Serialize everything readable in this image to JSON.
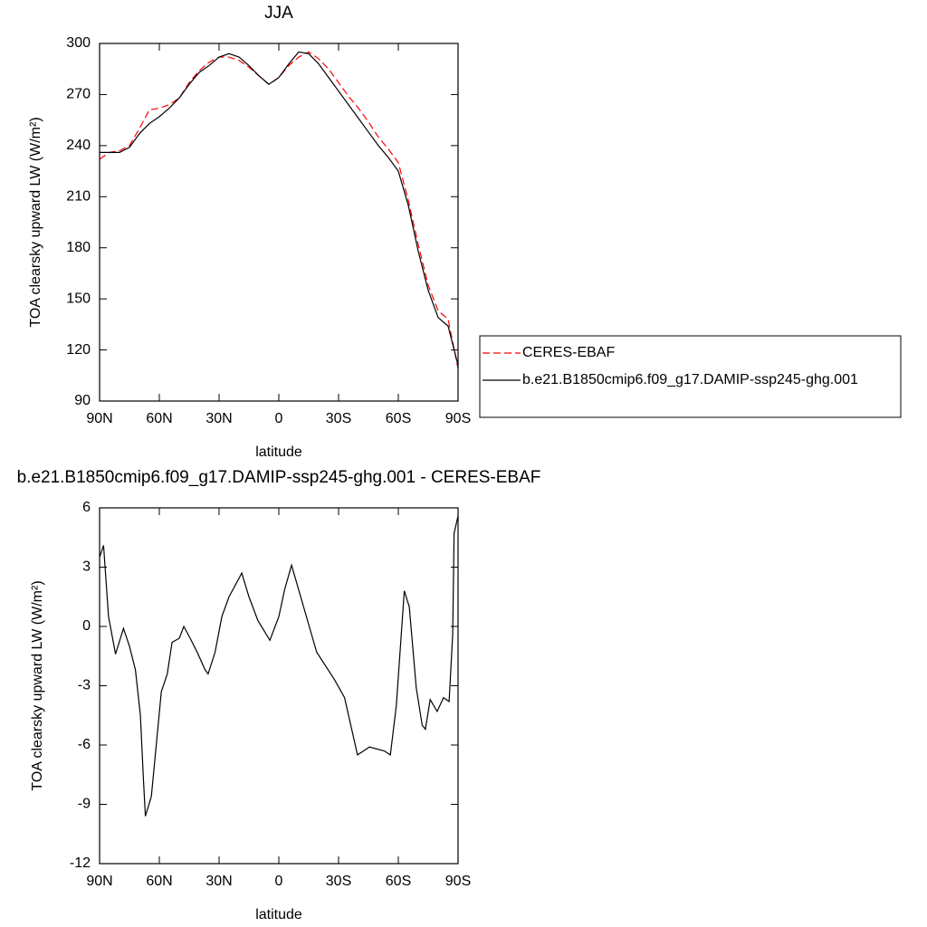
{
  "chart_data": [
    {
      "type": "line",
      "title": "JJA",
      "xlabel": "latitude",
      "ylabel": "TOA clearsky upward LW (W/m²)",
      "x": [
        90,
        85,
        80,
        75,
        70,
        65,
        60,
        55,
        50,
        45,
        40,
        35,
        30,
        25,
        20,
        15,
        10,
        5,
        0,
        -5,
        -10,
        -15,
        -20,
        -25,
        -30,
        -35,
        -40,
        -45,
        -50,
        -55,
        -60,
        -65,
        -70,
        -75,
        -80,
        -85,
        -90
      ],
      "series": [
        {
          "name": "CERES-EBAF",
          "color": "#ff0000",
          "style": "dashed",
          "values": [
            232,
            236,
            237,
            240,
            250,
            261,
            262,
            264,
            268,
            277,
            284,
            289,
            292,
            292,
            290,
            286,
            281,
            276,
            280,
            287,
            292,
            295,
            291,
            285,
            277,
            269,
            262,
            254,
            245,
            238,
            230,
            208,
            182,
            158,
            143,
            138,
            109
          ]
        },
        {
          "name": "b.e21.B1850cmip6.f09_g17.DAMIP-ssp245-ghg.001",
          "color": "#000000",
          "style": "solid",
          "values": [
            236,
            236,
            236,
            239,
            247,
            253,
            257,
            262,
            268,
            276,
            283,
            287,
            292,
            294,
            292,
            287,
            281,
            276,
            280,
            288,
            295,
            294,
            288,
            280,
            272,
            264,
            256,
            248,
            240,
            233,
            225,
            205,
            178,
            155,
            139,
            134,
            111
          ]
        }
      ],
      "xlim": [
        90,
        -90
      ],
      "ylim": [
        90,
        300
      ],
      "xticks": [
        {
          "value": 90,
          "label": "90N"
        },
        {
          "value": 60,
          "label": "60N"
        },
        {
          "value": 30,
          "label": "30N"
        },
        0,
        {
          "value": -30,
          "label": "30S"
        },
        {
          "value": -60,
          "label": "60S"
        },
        {
          "value": -90,
          "label": "90S"
        }
      ],
      "yticks": [
        90,
        120,
        150,
        180,
        210,
        240,
        270,
        300
      ],
      "legend": "right"
    },
    {
      "type": "line",
      "title": "b.e21.B1850cmip6.f09_g17.DAMIP-ssp245-ghg.001 - CERES-EBAF",
      "xlabel": "latitude",
      "ylabel": "TOA clearsky upward LW (W/m²)",
      "x": [
        90,
        88,
        85.5,
        82,
        78,
        75,
        72,
        69.5,
        68,
        67,
        64,
        60.5,
        59,
        56,
        53.6,
        50,
        47.7,
        44.5,
        41,
        37,
        35.5,
        32,
        28.6,
        25,
        18.6,
        15,
        10.5,
        4.5,
        0,
        -3,
        -6.4,
        -19,
        -28,
        -33,
        -39.5,
        -45.5,
        -53,
        -56,
        -59,
        -63,
        -65.5,
        -69,
        -72,
        -73.6,
        -76,
        -79.5,
        -82.7,
        -85.5,
        -87.3,
        -88,
        -90
      ],
      "series": [
        {
          "color": "#000000",
          "style": "solid",
          "values": [
            3.5,
            4.1,
            0.5,
            -1.4,
            -0.1,
            -1.0,
            -2.2,
            -4.5,
            -7.7,
            -9.6,
            -8.6,
            -4.9,
            -3.3,
            -2.4,
            -0.8,
            -0.6,
            0.0,
            -0.6,
            -1.3,
            -2.2,
            -2.4,
            -1.3,
            0.5,
            1.5,
            2.7,
            1.5,
            0.3,
            -0.7,
            0.5,
            1.9,
            3.1,
            -1.3,
            -2.7,
            -3.6,
            -6.5,
            -6.1,
            -6.3,
            -6.5,
            -4.0,
            1.8,
            1.0,
            -3.1,
            -5.0,
            -5.2,
            -3.7,
            -4.3,
            -3.6,
            -3.8,
            -0.4,
            4.7,
            5.6
          ]
        }
      ],
      "xlim": [
        90,
        -90
      ],
      "ylim": [
        -12,
        6
      ],
      "xticks": [
        {
          "value": 90,
          "label": "90N"
        },
        {
          "value": 60,
          "label": "60N"
        },
        {
          "value": 30,
          "label": "30N"
        },
        0,
        {
          "value": -30,
          "label": "30S"
        },
        {
          "value": -60,
          "label": "60S"
        },
        {
          "value": -90,
          "label": "90S"
        }
      ],
      "yticks": [
        -12,
        -9,
        -6,
        -3,
        0,
        3,
        6
      ]
    }
  ]
}
